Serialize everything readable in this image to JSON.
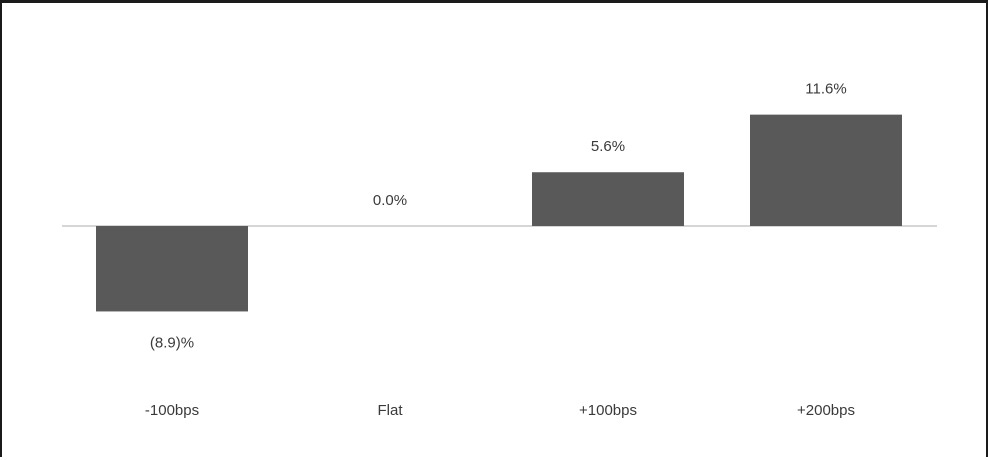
{
  "chart_data": {
    "type": "bar",
    "categories": [
      "-100bps",
      "Flat",
      "+100bps",
      "+200bps"
    ],
    "values": [
      -8.9,
      0.0,
      5.6,
      11.6
    ],
    "data_labels": [
      "(8.9)%",
      "0.0%",
      "5.6%",
      "11.6%"
    ],
    "title": "",
    "xlabel": "",
    "ylabel": "",
    "ylim": [
      -12,
      14
    ],
    "grid": false,
    "legend": "none",
    "bar_color": "#595959",
    "baseline_color": "#c8c8c8"
  }
}
